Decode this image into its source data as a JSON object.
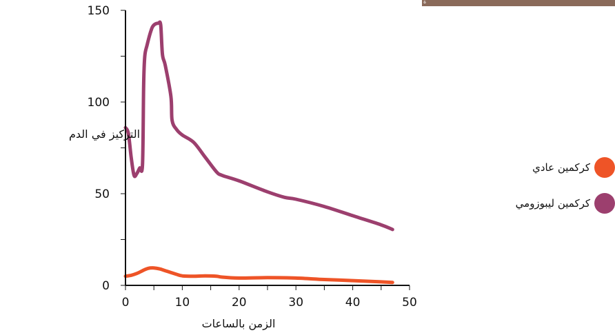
{
  "header_band": {
    "text": "ة",
    "color": "#8a6a5a"
  },
  "chart_data": {
    "type": "line",
    "xlabel": "الزمن بالساعات",
    "ylabel": "التركيز في الدم",
    "xlim": [
      0,
      50
    ],
    "ylim": [
      0,
      150
    ],
    "x_ticks": [
      "0",
      "10",
      "20",
      "30",
      "40",
      "50"
    ],
    "y_ticks": [
      "0",
      "50",
      "100",
      "150"
    ],
    "grid": false,
    "legend_position": "right",
    "series": [
      {
        "name": "كركمين عادي",
        "color": "#ee5427",
        "points": [
          [
            0,
            5
          ],
          [
            1,
            5.5
          ],
          [
            2,
            6.5
          ],
          [
            3,
            8
          ],
          [
            4,
            9.3
          ],
          [
            5,
            9.5
          ],
          [
            6,
            9
          ],
          [
            7,
            8
          ],
          [
            8,
            7
          ],
          [
            9,
            6
          ],
          [
            10,
            5.2
          ],
          [
            12,
            5
          ],
          [
            14,
            5.2
          ],
          [
            16,
            5
          ],
          [
            17,
            4.5
          ],
          [
            20,
            4
          ],
          [
            25,
            4.2
          ],
          [
            30,
            4
          ],
          [
            35,
            3.2
          ],
          [
            40,
            2.6
          ],
          [
            45,
            1.9
          ],
          [
            47,
            1.6
          ]
        ]
      },
      {
        "name": "كركمين ليبوزومي",
        "color": "#9c3f6e",
        "points": [
          [
            0,
            86
          ],
          [
            0.5,
            83
          ],
          [
            1,
            70
          ],
          [
            1.5,
            60
          ],
          [
            2,
            61
          ],
          [
            2.5,
            64
          ],
          [
            3,
            66
          ],
          [
            3.2,
            110
          ],
          [
            3.4,
            125
          ],
          [
            3.8,
            131
          ],
          [
            4.5,
            139
          ],
          [
            5,
            142
          ],
          [
            5.8,
            143
          ],
          [
            6.2,
            142
          ],
          [
            6.5,
            126
          ],
          [
            7,
            120
          ],
          [
            8,
            103
          ],
          [
            8.2,
            90
          ],
          [
            9,
            85
          ],
          [
            10,
            82
          ],
          [
            12,
            78
          ],
          [
            14,
            70
          ],
          [
            16,
            62
          ],
          [
            17,
            60
          ],
          [
            20,
            57
          ],
          [
            25,
            51
          ],
          [
            28,
            48
          ],
          [
            30,
            47
          ],
          [
            35,
            43
          ],
          [
            40,
            38
          ],
          [
            45,
            33
          ],
          [
            47,
            30.5
          ]
        ]
      }
    ]
  }
}
